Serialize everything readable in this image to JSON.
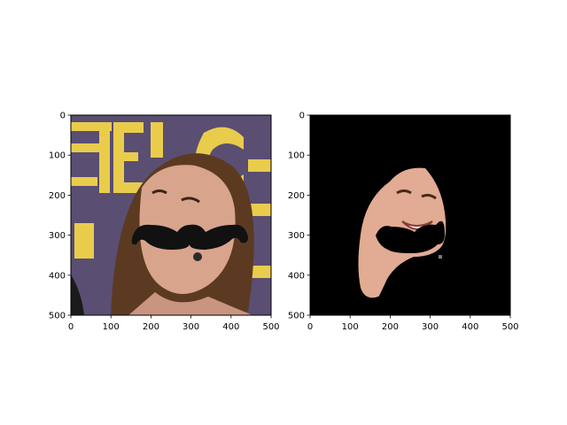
{
  "chart_data": [
    {
      "type": "image",
      "title": "",
      "xlabel": "",
      "ylabel": "",
      "xlim": [
        0,
        500
      ],
      "ylim": [
        500,
        0
      ],
      "xticks": [
        0,
        100,
        200,
        300,
        400,
        500
      ],
      "yticks": [
        0,
        100,
        200,
        300,
        400,
        500
      ],
      "xtick_labels": [
        "0",
        "100",
        "200",
        "300",
        "400",
        "500"
      ],
      "ytick_labels": [
        "0",
        "100",
        "200",
        "300",
        "400",
        "500"
      ],
      "content": "photo",
      "background_color": "#5a4e72",
      "accent_color": "#f2d34a",
      "overlay_color": "#111111"
    },
    {
      "type": "image",
      "title": "",
      "xlabel": "",
      "ylabel": "",
      "xlim": [
        0,
        500
      ],
      "ylim": [
        500,
        0
      ],
      "xticks": [
        0,
        100,
        200,
        300,
        400,
        500
      ],
      "yticks": [
        0,
        100,
        200,
        300,
        400,
        500
      ],
      "xtick_labels": [
        "0",
        "100",
        "200",
        "300",
        "400",
        "500"
      ],
      "ytick_labels": [
        "0",
        "100",
        "200",
        "300",
        "400",
        "500"
      ],
      "content": "segmentation-mask",
      "background_color": "#000000",
      "skin_color": "#e2ab93",
      "overlay_color": "#000000"
    }
  ]
}
